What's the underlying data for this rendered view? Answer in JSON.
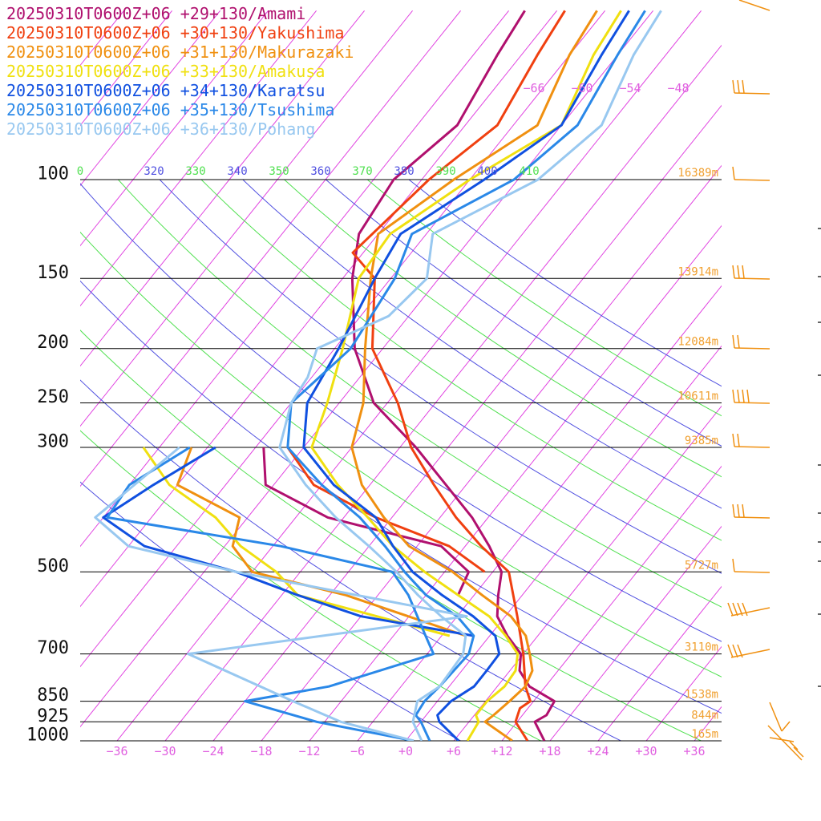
{
  "chart_data": {
    "type": "line",
    "title": "",
    "xlabel": "",
    "ylabel": "",
    "x_axis": {
      "unit": "degC",
      "ticks": [
        -36,
        -30,
        -24,
        -18,
        -12,
        -6,
        0,
        6,
        12,
        18,
        24,
        30,
        36
      ],
      "tick_labels": [
        "−36",
        "−30",
        "−24",
        "−18",
        "−12",
        "−6",
        "+0",
        "+6",
        "+12",
        "+18",
        "+24",
        "+30",
        "+36"
      ],
      "xlim": [
        -40,
        40
      ],
      "label_color": "#e060e0"
    },
    "y_axis": {
      "unit": "hPa",
      "scale": "log",
      "ylim": [
        1000,
        100
      ],
      "levels": [
        {
          "p": 100,
          "label": "100",
          "height": "16389m"
        },
        {
          "p": 150,
          "label": "150",
          "height": "13914m"
        },
        {
          "p": 200,
          "label": "200",
          "height": "12084m"
        },
        {
          "p": 250,
          "label": "250",
          "height": "10611m"
        },
        {
          "p": 300,
          "label": "300",
          "height": "9385m"
        },
        {
          "p": 500,
          "label": "500",
          "height": "5727m"
        },
        {
          "p": 700,
          "label": "700",
          "height": "3110m"
        },
        {
          "p": 850,
          "label": "850",
          "height": "1538m"
        },
        {
          "p": 925,
          "label": "925",
          "height": "844m"
        },
        {
          "p": 1000,
          "label": "1000",
          "height": "165m"
        }
      ]
    },
    "top_isotherm_labels": [
      "−66",
      "−60",
      "−54",
      "−48"
    ],
    "theta_labels": [
      {
        "text": "0",
        "color": "#50e050"
      },
      {
        "text": "320",
        "color": "#5050e0"
      },
      {
        "text": "330",
        "color": "#50e050"
      },
      {
        "text": "340",
        "color": "#5050e0"
      },
      {
        "text": "350",
        "color": "#50e050"
      },
      {
        "text": "360",
        "color": "#5050e0"
      },
      {
        "text": "370",
        "color": "#50e050"
      },
      {
        "text": "380",
        "color": "#5050e0"
      },
      {
        "text": "390",
        "color": "#50e050"
      },
      {
        "text": "400",
        "color": "#5050e0"
      },
      {
        "text": "410",
        "color": "#50e050"
      }
    ],
    "series": [
      {
        "name": "20250310T0600Z+06 +29+130/Amami",
        "color": "#b0106e",
        "temperature": [
          [
            1000,
            17.3
          ],
          [
            925,
            14.2
          ],
          [
            900,
            15.0
          ],
          [
            850,
            14.6
          ],
          [
            800,
            10.0
          ],
          [
            750,
            7.2
          ],
          [
            700,
            5.7
          ],
          [
            650,
            2.2
          ],
          [
            600,
            -1.0
          ],
          [
            550,
            -3.0
          ],
          [
            500,
            -4.9
          ],
          [
            450,
            -9.0
          ],
          [
            400,
            -14.0
          ],
          [
            350,
            -20.5
          ],
          [
            300,
            -28.0
          ],
          [
            250,
            -37.7
          ],
          [
            200,
            -45.5
          ],
          [
            150,
            -52.8
          ],
          [
            125,
            -56.4
          ],
          [
            100,
            -57.5
          ],
          [
            80,
            -55.0
          ],
          [
            60,
            -57.0
          ],
          [
            50,
            -58.0
          ]
        ],
        "dewpoint": [
          [
            550,
            -8.0
          ],
          [
            500,
            -9.0
          ],
          [
            450,
            -15.0
          ],
          [
            400,
            -32.0
          ],
          [
            350,
            -43.0
          ],
          [
            300,
            -47.0
          ]
        ]
      },
      {
        "name": "20250310T0600Z+06 +30+130/Yakushima",
        "color": "#f04010",
        "temperature": [
          [
            1000,
            15.2
          ],
          [
            925,
            11.8
          ],
          [
            875,
            11.0
          ],
          [
            850,
            11.6
          ],
          [
            800,
            9.5
          ],
          [
            700,
            6.0
          ],
          [
            600,
            1.5
          ],
          [
            500,
            -4.0
          ],
          [
            450,
            -10.0
          ],
          [
            400,
            -16.0
          ],
          [
            350,
            -22.0
          ],
          [
            300,
            -28.6
          ],
          [
            250,
            -34.7
          ],
          [
            200,
            -43.3
          ],
          [
            150,
            -50.0
          ],
          [
            135,
            -55.3
          ],
          [
            100,
            -53.1
          ],
          [
            80,
            -50.0
          ],
          [
            60,
            -52.0
          ],
          [
            50,
            -53.0
          ]
        ],
        "dewpoint": [
          [
            500,
            -7.0
          ],
          [
            450,
            -14.0
          ],
          [
            400,
            -26.0
          ],
          [
            350,
            -37.0
          ],
          [
            300,
            -44.0
          ]
        ]
      },
      {
        "name": "20250310T0600Z+06 +31+130/Makurazaki",
        "color": "#f09010",
        "temperature": [
          [
            1000,
            13.3
          ],
          [
            925,
            8.0
          ],
          [
            900,
            8.4
          ],
          [
            850,
            9.0
          ],
          [
            800,
            9.5
          ],
          [
            750,
            8.8
          ],
          [
            700,
            6.8
          ],
          [
            650,
            4.5
          ],
          [
            600,
            0.7
          ],
          [
            550,
            -5.0
          ],
          [
            500,
            -11.0
          ],
          [
            450,
            -19.0
          ],
          [
            400,
            -25.0
          ],
          [
            350,
            -31.0
          ],
          [
            300,
            -36.0
          ],
          [
            250,
            -39.0
          ],
          [
            200,
            -44.2
          ],
          [
            150,
            -50.5
          ],
          [
            125,
            -54.0
          ],
          [
            100,
            -50.0
          ],
          [
            80,
            -45.0
          ],
          [
            60,
            -48.0
          ],
          [
            50,
            -49.0
          ]
        ],
        "dewpoint": [
          [
            650,
            -3.0
          ],
          [
            550,
            -22.0
          ],
          [
            500,
            -36.0
          ],
          [
            450,
            -41.0
          ],
          [
            400,
            -43.0
          ],
          [
            350,
            -54.0
          ],
          [
            300,
            -56.0
          ]
        ]
      },
      {
        "name": "20250310T0600Z+06 +33+130/Amakusa",
        "color": "#f0e010",
        "temperature": [
          [
            1000,
            7.7
          ],
          [
            925,
            7.2
          ],
          [
            900,
            6.2
          ],
          [
            850,
            6.2
          ],
          [
            800,
            6.9
          ],
          [
            750,
            6.7
          ],
          [
            700,
            5.3
          ],
          [
            650,
            2.0
          ],
          [
            600,
            -2.0
          ],
          [
            550,
            -8.0
          ],
          [
            500,
            -14.5
          ],
          [
            450,
            -21.0
          ],
          [
            400,
            -27.0
          ],
          [
            350,
            -34.0
          ],
          [
            300,
            -41.0
          ],
          [
            250,
            -43.5
          ],
          [
            200,
            -47.0
          ],
          [
            150,
            -52.0
          ],
          [
            125,
            -52.5
          ],
          [
            100,
            -48.0
          ],
          [
            80,
            -42.0
          ],
          [
            60,
            -45.0
          ],
          [
            50,
            -46.0
          ]
        ],
        "dewpoint": [
          [
            650,
            -5.0
          ],
          [
            550,
            -28.0
          ],
          [
            500,
            -33.0
          ],
          [
            450,
            -40.0
          ],
          [
            400,
            -46.0
          ],
          [
            350,
            -55.0
          ],
          [
            300,
            -62.0
          ]
        ]
      },
      {
        "name": "20250310T0600Z+06 +34+130/Karatsu",
        "color": "#1050e0",
        "temperature": [
          [
            1000,
            6.6
          ],
          [
            925,
            2.3
          ],
          [
            900,
            1.4
          ],
          [
            850,
            1.7
          ],
          [
            800,
            3.1
          ],
          [
            750,
            3.1
          ],
          [
            700,
            3.0
          ],
          [
            650,
            0.7
          ],
          [
            600,
            -4.0
          ],
          [
            550,
            -10.0
          ],
          [
            500,
            -16.0
          ],
          [
            450,
            -21.0
          ],
          [
            400,
            -26.0
          ],
          [
            350,
            -34.5
          ],
          [
            300,
            -42.0
          ],
          [
            250,
            -46.0
          ],
          [
            200,
            -47.5
          ],
          [
            150,
            -50.0
          ],
          [
            125,
            -51.2
          ],
          [
            100,
            -46.2
          ],
          [
            80,
            -42.0
          ],
          [
            60,
            -44.0
          ],
          [
            50,
            -45.0
          ]
        ],
        "dewpoint": [
          [
            650,
            -2.0
          ],
          [
            600,
            -18.0
          ],
          [
            550,
            -28.0
          ],
          [
            500,
            -38.0
          ],
          [
            450,
            -52.0
          ],
          [
            400,
            -60.0
          ],
          [
            350,
            -57.0
          ],
          [
            300,
            -53.0
          ]
        ]
      },
      {
        "name": "20250310T0600Z+06 +35+130/Tsushima",
        "color": "#2a88e8",
        "temperature": [
          [
            1000,
            3.0
          ],
          [
            925,
            0.0
          ],
          [
            900,
            -1.3
          ],
          [
            850,
            -1.6
          ],
          [
            800,
            -1.2
          ],
          [
            700,
            -0.8
          ],
          [
            650,
            -2.0
          ],
          [
            600,
            -6.0
          ],
          [
            550,
            -12.0
          ],
          [
            500,
            -17.0
          ],
          [
            450,
            -22.0
          ],
          [
            400,
            -28.0
          ],
          [
            350,
            -36.0
          ],
          [
            300,
            -44.0
          ],
          [
            250,
            -48.0
          ],
          [
            200,
            -46.0
          ],
          [
            150,
            -47.5
          ],
          [
            125,
            -49.8
          ],
          [
            100,
            -42.5
          ],
          [
            80,
            -40.0
          ],
          [
            60,
            -42.0
          ],
          [
            50,
            -43.0
          ]
        ],
        "dewpoint": [
          [
            1000,
            1.0
          ],
          [
            925,
            -13.0
          ],
          [
            850,
            -24.0
          ],
          [
            800,
            -15.0
          ],
          [
            700,
            -5.2
          ],
          [
            650,
            -8.0
          ],
          [
            550,
            -14.2
          ],
          [
            500,
            -18.5
          ],
          [
            450,
            -35.0
          ],
          [
            400,
            -59.5
          ],
          [
            350,
            -60.0
          ],
          [
            300,
            -56.2
          ]
        ]
      },
      {
        "name": "20250310T0600Z+06 +36+130/Pohang",
        "color": "#98c8f0",
        "temperature": [
          [
            1000,
            2.0
          ],
          [
            925,
            -1.0
          ],
          [
            850,
            -2.5
          ],
          [
            800,
            -1.2
          ],
          [
            700,
            -1.5
          ],
          [
            650,
            -3.0
          ],
          [
            600,
            -8.0
          ],
          [
            550,
            -13.0
          ],
          [
            500,
            -18.0
          ],
          [
            450,
            -24.0
          ],
          [
            400,
            -31.0
          ],
          [
            350,
            -38.0
          ],
          [
            300,
            -45.0
          ],
          [
            250,
            -48.0
          ],
          [
            225,
            -48.5
          ],
          [
            200,
            -50.2
          ],
          [
            175,
            -44.5
          ],
          [
            150,
            -43.5
          ],
          [
            125,
            -47.2
          ],
          [
            100,
            -39.5
          ],
          [
            80,
            -37.0
          ],
          [
            60,
            -40.0
          ],
          [
            50,
            -41.0
          ]
        ],
        "dewpoint": [
          [
            1000,
            1.0
          ],
          [
            925,
            -10.0
          ],
          [
            850,
            -18.0
          ],
          [
            700,
            -35.8
          ],
          [
            600,
            -4.8
          ],
          [
            500,
            -38.0
          ],
          [
            450,
            -54.0
          ],
          [
            400,
            -61.0
          ],
          [
            300,
            -57.5
          ]
        ]
      }
    ],
    "wind_barb_color": "#f09010"
  }
}
